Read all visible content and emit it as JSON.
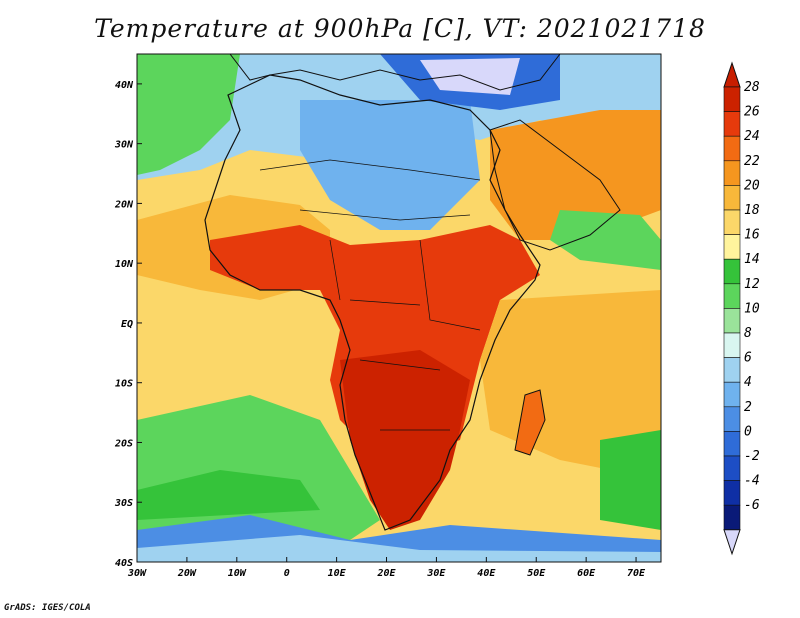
{
  "title": "Temperature at 900hPa [C], VT: 2021021718",
  "credit": "GrADS: IGES/COLA",
  "map": {
    "projection": "latlon",
    "lon_range": [
      -30,
      75
    ],
    "lat_range": [
      -40,
      45
    ],
    "lon_ticks": [
      "30W",
      "20W",
      "10W",
      "0",
      "10E",
      "20E",
      "30E",
      "40E",
      "50E",
      "60E",
      "70E"
    ],
    "lon_values": [
      -30,
      -20,
      -10,
      0,
      10,
      20,
      30,
      40,
      50,
      60,
      70
    ],
    "lat_ticks": [
      "40N",
      "30N",
      "20N",
      "10N",
      "EQ",
      "10S",
      "20S",
      "30S",
      "40S"
    ],
    "lat_values": [
      40,
      30,
      20,
      10,
      0,
      -10,
      -20,
      -30,
      -40
    ]
  },
  "colorbar": {
    "labels": [
      "28",
      "26",
      "24",
      "22",
      "20",
      "18",
      "16",
      "14",
      "12",
      "10",
      "8",
      "6",
      "4",
      "2",
      "0",
      "-2",
      "-4",
      "-6"
    ],
    "colors": [
      "#cc2200",
      "#e63a0c",
      "#f26b13",
      "#f5961f",
      "#f8b83a",
      "#fbd769",
      "#fff49d",
      "#35c33a",
      "#5cd55c",
      "#9ae39a",
      "#d9f6f0",
      "#9fd2f0",
      "#6fb2ee",
      "#4c8ee4",
      "#2f6cd8",
      "#1d4ec5",
      "#0f2fa5",
      "#0a1a78"
    ],
    "top_color": "#c81e00",
    "bottom_color": "#d8d8fa"
  },
  "regions": [
    {
      "name": "ocean-warm-north-atlantic",
      "color": "#fbd769"
    },
    {
      "name": "ocean-warm-south-atlantic",
      "color": "#fbd769"
    },
    {
      "name": "ocean-cool-south-atlantic",
      "color": "#5cd55c"
    },
    {
      "name": "southern-ocean",
      "color": "#4c8ee4"
    },
    {
      "name": "indian-ocean",
      "color": "#f8b83a"
    },
    {
      "name": "sahara-cool",
      "color": "#6fb2ee"
    },
    {
      "name": "mediterranean",
      "color": "#2f6cd8"
    },
    {
      "name": "tropical-hot",
      "color": "#e63a0c"
    },
    {
      "name": "southern-hot",
      "color": "#cc2200"
    },
    {
      "name": "arabia",
      "color": "#f5961f"
    }
  ]
}
